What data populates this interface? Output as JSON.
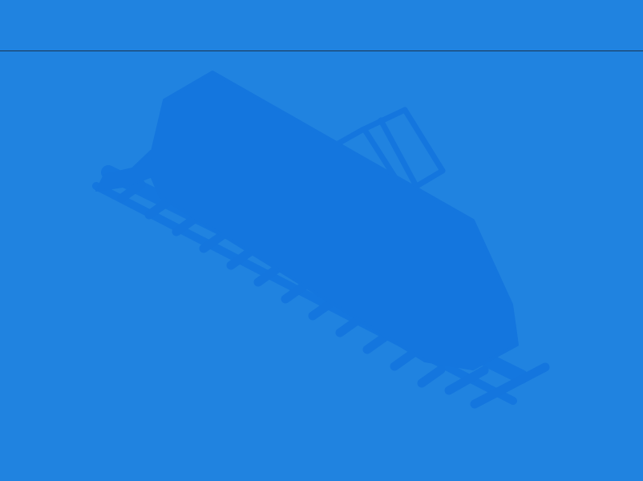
{
  "theme": {
    "background": "#2083e0",
    "watermark": "#1476de",
    "divider": "#1b3550"
  },
  "watermark": {
    "icon": "train-icon"
  }
}
